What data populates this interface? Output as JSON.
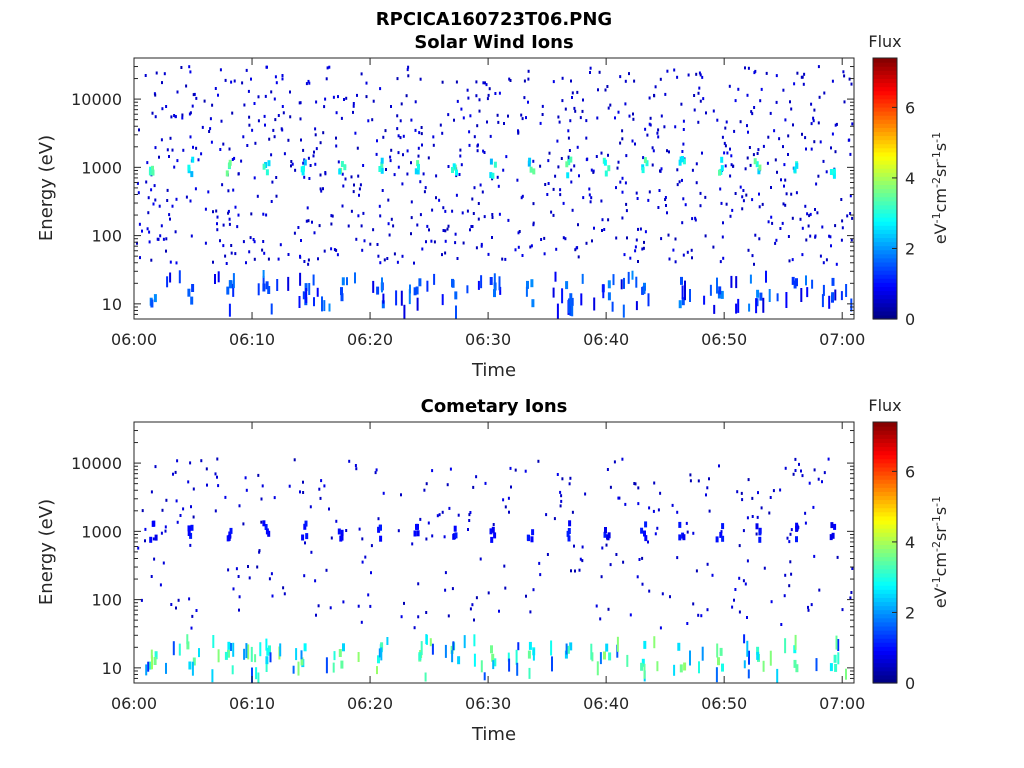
{
  "figure": {
    "filename": "RPCICA160723T06.PNG"
  },
  "chart_data": [
    {
      "type": "heatmap",
      "title": "Solar Wind Ions",
      "xlabel": "Time",
      "ylabel": "Energy (eV)",
      "x_ticks": [
        "06:00",
        "06:10",
        "06:20",
        "06:30",
        "06:40",
        "06:50",
        "07:00"
      ],
      "xlim": [
        "06:00",
        "07:01"
      ],
      "y_scale": "log",
      "y_ticks": [
        10,
        100,
        1000,
        10000
      ],
      "y_tick_labels": [
        "10",
        "100",
        "1000",
        "10000"
      ],
      "ylim": [
        6,
        40000
      ],
      "colorbar": {
        "title": "Flux",
        "label": "eV-1cm-2sr-1s-1",
        "range": [
          0,
          7.4
        ],
        "ticks": [
          0,
          2,
          4,
          6
        ],
        "tick_labels": [
          "0",
          "2",
          "4",
          "6"
        ],
        "colormap": "jet"
      },
      "features": {
        "sweep_period_min": 3.2,
        "band_energy_eV": 1100,
        "band_times_min": [
          1.5,
          4.7,
          7.9,
          11.1,
          14.3,
          17.5,
          20.7,
          23.9,
          27.1,
          30.3,
          33.5,
          36.7,
          39.9,
          43.1,
          46.3,
          49.5,
          52.7,
          55.9,
          59.1
        ],
        "band_flux": 2.8,
        "low_energy_flux": 1.5,
        "background_flux": 0.5
      }
    },
    {
      "type": "heatmap",
      "title": "Cometary Ions",
      "xlabel": "Time",
      "ylabel": "Energy (eV)",
      "x_ticks": [
        "06:00",
        "06:10",
        "06:20",
        "06:30",
        "06:40",
        "06:50",
        "07:00"
      ],
      "xlim": [
        "06:00",
        "07:01"
      ],
      "y_scale": "log",
      "y_ticks": [
        10,
        100,
        1000,
        10000
      ],
      "y_tick_labels": [
        "10",
        "100",
        "1000",
        "10000"
      ],
      "ylim": [
        6,
        40000
      ],
      "colorbar": {
        "title": "Flux",
        "label": "eV-1cm-2sr-1s-1",
        "range": [
          0,
          7.4
        ],
        "ticks": [
          0,
          2,
          4,
          6
        ],
        "tick_labels": [
          "0",
          "2",
          "4",
          "6"
        ],
        "colormap": "jet"
      },
      "features": {
        "sweep_period_min": 3.2,
        "band_energy_eV": 1100,
        "band_times_min": [
          1.5,
          4.7,
          7.9,
          11.1,
          14.3,
          17.5,
          20.7,
          23.9,
          27.1,
          30.3,
          33.5,
          36.7,
          39.9,
          43.1,
          46.3,
          49.5,
          52.7,
          55.9,
          59.1
        ],
        "band_flux": 0.9,
        "low_energy_flux": 3.0,
        "background_flux": 0.5
      }
    }
  ]
}
